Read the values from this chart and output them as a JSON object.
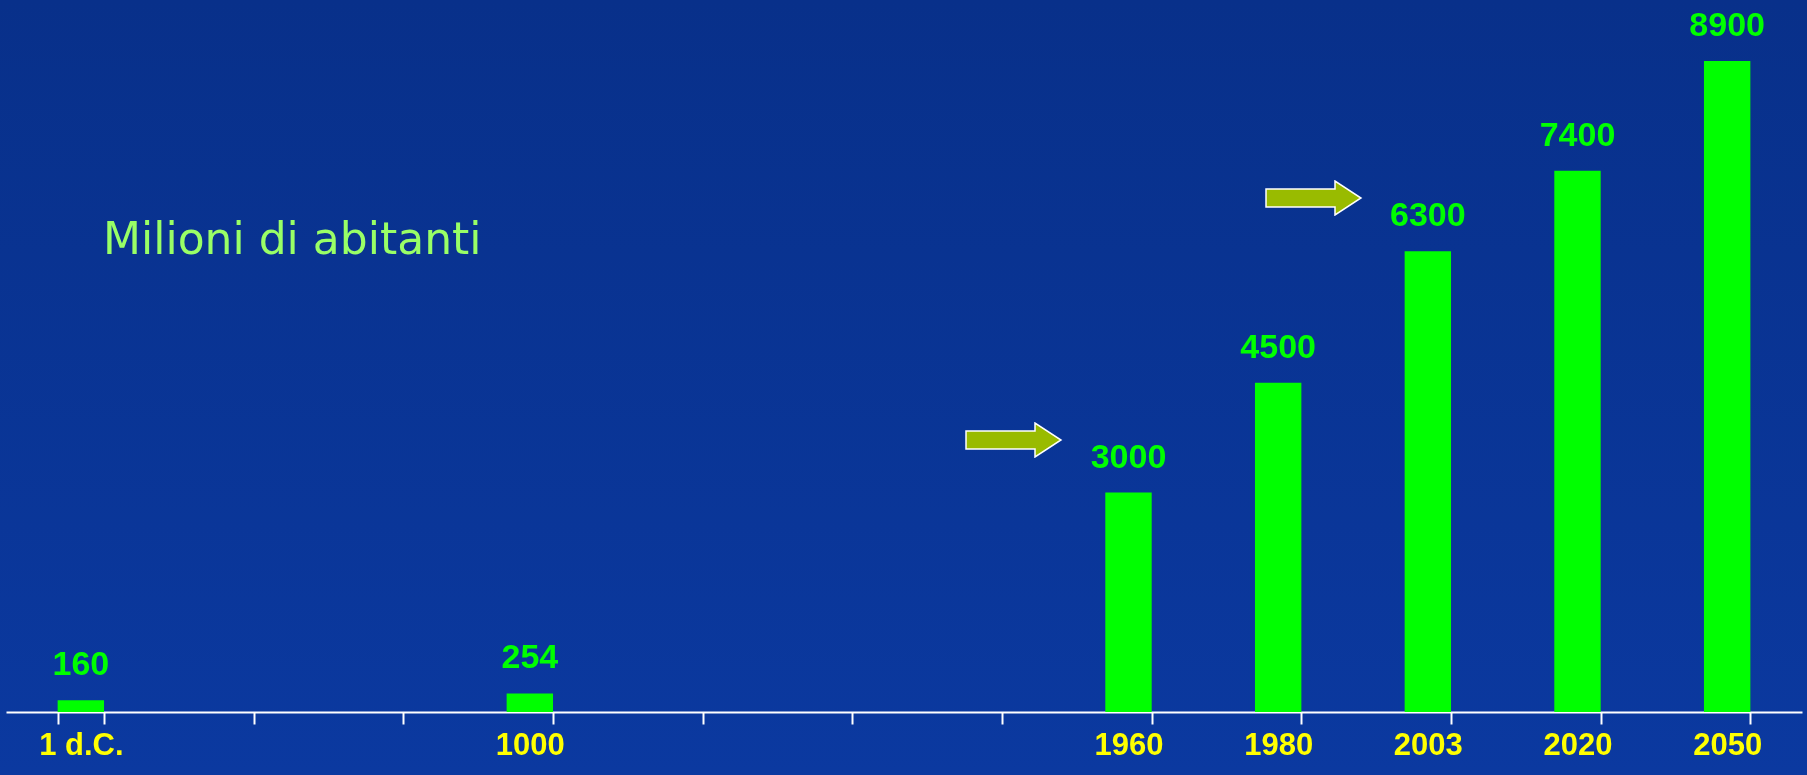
{
  "chart_data": {
    "type": "bar",
    "categories": [
      "1 d.C.",
      null,
      null,
      "1000",
      null,
      null,
      null,
      "1960",
      "1980",
      "2003",
      "2020",
      "2050"
    ],
    "values": [
      160,
      null,
      null,
      254,
      null,
      null,
      null,
      3000,
      4500,
      6300,
      7400,
      8900
    ],
    "color": "#00ff00",
    "data_labels": true,
    "annotations": [
      "Milioni di abitanti"
    ]
  }
}
